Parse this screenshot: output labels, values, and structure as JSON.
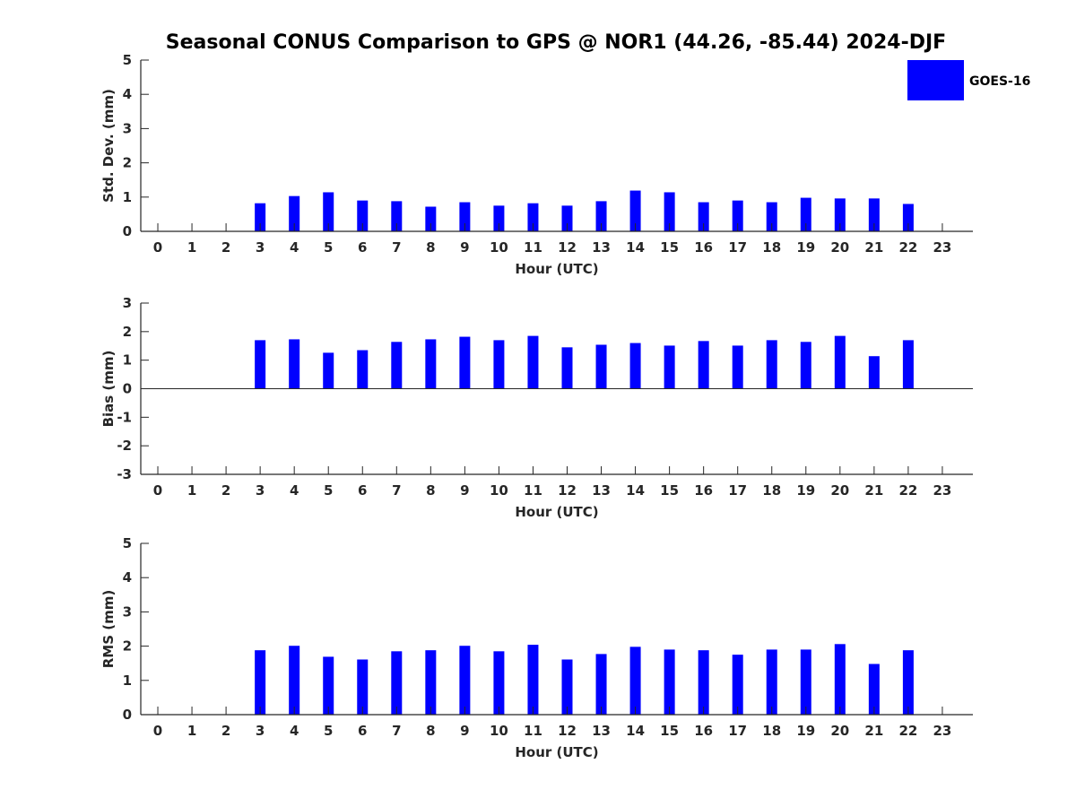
{
  "chart_data": {
    "type": "bar",
    "title": "Seasonal CONUS Comparison to GPS @ NOR1 (44.26, -85.44) 2024-DJF",
    "legend": {
      "entries": [
        "GOES-16"
      ],
      "placement": "top-right",
      "color": "#0000ff"
    },
    "categories": [
      0,
      1,
      2,
      3,
      4,
      5,
      6,
      7,
      8,
      9,
      10,
      11,
      12,
      13,
      14,
      15,
      16,
      17,
      18,
      19,
      20,
      21,
      22,
      23
    ],
    "panels": [
      {
        "ylabel": "Std. Dev. (mm)",
        "xlabel": "Hour (UTC)",
        "ylim": [
          0,
          5
        ],
        "yticks": [
          0,
          1,
          2,
          3,
          4,
          5
        ],
        "series": [
          {
            "name": "GOES-16",
            "values": [
              null,
              null,
              null,
              0.82,
              1.03,
              1.14,
              0.9,
              0.88,
              0.72,
              0.85,
              0.75,
              0.82,
              0.75,
              0.88,
              1.19,
              1.14,
              0.85,
              0.9,
              0.85,
              0.98,
              0.96,
              0.96,
              0.8,
              null
            ]
          }
        ]
      },
      {
        "ylabel": "Bias (mm)",
        "xlabel": "Hour (UTC)",
        "ylim": [
          -3,
          3
        ],
        "yticks": [
          -3,
          -2,
          -1,
          0,
          1,
          2,
          3
        ],
        "series": [
          {
            "name": "GOES-16",
            "values": [
              null,
              null,
              null,
              1.7,
              1.73,
              1.26,
              1.35,
              1.64,
              1.73,
              1.82,
              1.7,
              1.85,
              1.45,
              1.54,
              1.6,
              1.51,
              1.67,
              1.51,
              1.7,
              1.64,
              1.85,
              1.14,
              1.7,
              null
            ]
          }
        ]
      },
      {
        "ylabel": "RMS (mm)",
        "xlabel": "Hour (UTC)",
        "ylim": [
          0,
          5
        ],
        "yticks": [
          0,
          1,
          2,
          3,
          4,
          5
        ],
        "series": [
          {
            "name": "GOES-16",
            "values": [
              null,
              null,
              null,
              1.88,
              2.01,
              1.69,
              1.61,
              1.85,
              1.88,
              2.01,
              1.85,
              2.04,
              1.61,
              1.77,
              1.98,
              1.9,
              1.88,
              1.75,
              1.9,
              1.9,
              2.06,
              1.48,
              1.88,
              null
            ]
          }
        ]
      }
    ]
  }
}
